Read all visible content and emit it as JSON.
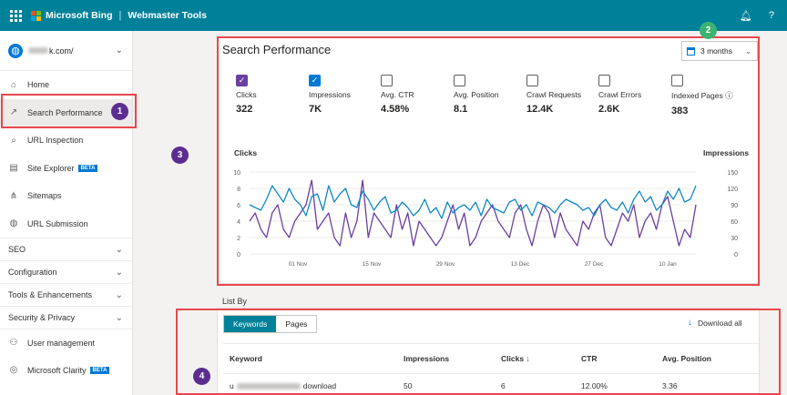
{
  "topbar": {
    "brand": "Microsoft Bing",
    "product": "Webmaster Tools",
    "bell_icon": "bell-icon",
    "help_label": "?"
  },
  "site": {
    "domain_suffix": "k.com/"
  },
  "sidebar": {
    "items": [
      {
        "label": "Home",
        "icon": "home-icon",
        "glyph": "⌂"
      },
      {
        "label": "Search Performance",
        "icon": "trend-icon",
        "glyph": "↗"
      },
      {
        "label": "URL Inspection",
        "icon": "search-icon",
        "glyph": "⌕"
      },
      {
        "label": "Site Explorer",
        "icon": "explorer-icon",
        "glyph": "▤",
        "badge": "BETA"
      },
      {
        "label": "Sitemaps",
        "icon": "sitemap-icon",
        "glyph": "⋔"
      },
      {
        "label": "URL Submission",
        "icon": "globe-icon",
        "glyph": "◍"
      }
    ],
    "sections": [
      "SEO",
      "Configuration",
      "Tools & Enhancements",
      "Security & Privacy"
    ],
    "bottom": [
      {
        "label": "User management",
        "icon": "user-icon",
        "glyph": "⚇"
      },
      {
        "label": "Microsoft Clarity",
        "icon": "clarity-icon",
        "glyph": "◎",
        "badge": "BETA"
      }
    ]
  },
  "performance": {
    "title": "Search Performance",
    "range": "3 months",
    "metrics": [
      {
        "label": "Clicks",
        "value": "322",
        "checked": "purple"
      },
      {
        "label": "Impressions",
        "value": "7K",
        "checked": "blue"
      },
      {
        "label": "Avg. CTR",
        "value": "4.58%",
        "checked": ""
      },
      {
        "label": "Avg. Position",
        "value": "8.1",
        "checked": ""
      },
      {
        "label": "Crawl Requests",
        "value": "12.4K",
        "checked": ""
      },
      {
        "label": "Crawl Errors",
        "value": "2.6K",
        "checked": ""
      },
      {
        "label": "Indexed Pages ⓘ",
        "value": "383",
        "checked": ""
      }
    ]
  },
  "annotations": [
    "1",
    "2",
    "3",
    "4"
  ],
  "chart_data": {
    "type": "line",
    "left_axis_label": "Clicks",
    "right_axis_label": "Impressions",
    "y_left_range": [
      0,
      10
    ],
    "y_left_ticks": [
      "0",
      "2",
      "4",
      "6",
      "8",
      "10"
    ],
    "y_right_range": [
      0,
      150
    ],
    "y_right_ticks": [
      "0",
      "30",
      "60",
      "90",
      "120",
      "150"
    ],
    "x_ticks": [
      "01 Nov",
      "15 Nov",
      "29 Nov",
      "13 Dec",
      "27 Dec",
      "10 Jan"
    ],
    "grid": true,
    "colors": {
      "clicks": "#6b3fa0",
      "impressions": "#0e89c6"
    },
    "series": [
      {
        "name": "Clicks",
        "axis": "left",
        "values": [
          4,
          5,
          3,
          2,
          5,
          6,
          3,
          2,
          4,
          5,
          6,
          9,
          3,
          4,
          5,
          2,
          1,
          5,
          2,
          4,
          9,
          2,
          5,
          4,
          3,
          2,
          6,
          3,
          5,
          1,
          4,
          3,
          2,
          1,
          2,
          4,
          6,
          3,
          5,
          1,
          2,
          4,
          5,
          6,
          4,
          3,
          2,
          5,
          6,
          3,
          1,
          4,
          6,
          5,
          2,
          5,
          3,
          2,
          1,
          4,
          3,
          5,
          6,
          2,
          1,
          3,
          5,
          4,
          6,
          2,
          4,
          5,
          3,
          6,
          7,
          4,
          1,
          3,
          2,
          6
        ]
      },
      {
        "name": "Impressions",
        "axis": "right",
        "values": [
          90,
          85,
          80,
          100,
          125,
          110,
          95,
          120,
          100,
          90,
          70,
          105,
          110,
          80,
          125,
          95,
          110,
          120,
          90,
          85,
          115,
          100,
          80,
          95,
          105,
          75,
          80,
          95,
          85,
          70,
          80,
          100,
          75,
          85,
          65,
          95,
          75,
          85,
          90,
          80,
          95,
          70,
          100,
          85,
          80,
          75,
          95,
          100,
          80,
          90,
          70,
          95,
          90,
          85,
          75,
          90,
          100,
          95,
          90,
          80,
          85,
          70,
          90,
          100,
          85,
          80,
          95,
          75,
          100,
          115,
          95,
          105,
          80,
          90,
          115,
          100,
          120,
          95,
          100,
          125
        ]
      }
    ]
  },
  "list": {
    "title": "List By",
    "tabs": [
      "Keywords",
      "Pages"
    ],
    "download": "Download all",
    "columns": [
      "Keyword",
      "Impressions",
      "Clicks ↓",
      "CTR",
      "Avg. Position"
    ],
    "rows": [
      {
        "keyword_prefix": "u",
        "keyword_suffix": "download",
        "impressions": "50",
        "clicks": "6",
        "ctr": "12.00%",
        "position": "3.36"
      }
    ]
  }
}
